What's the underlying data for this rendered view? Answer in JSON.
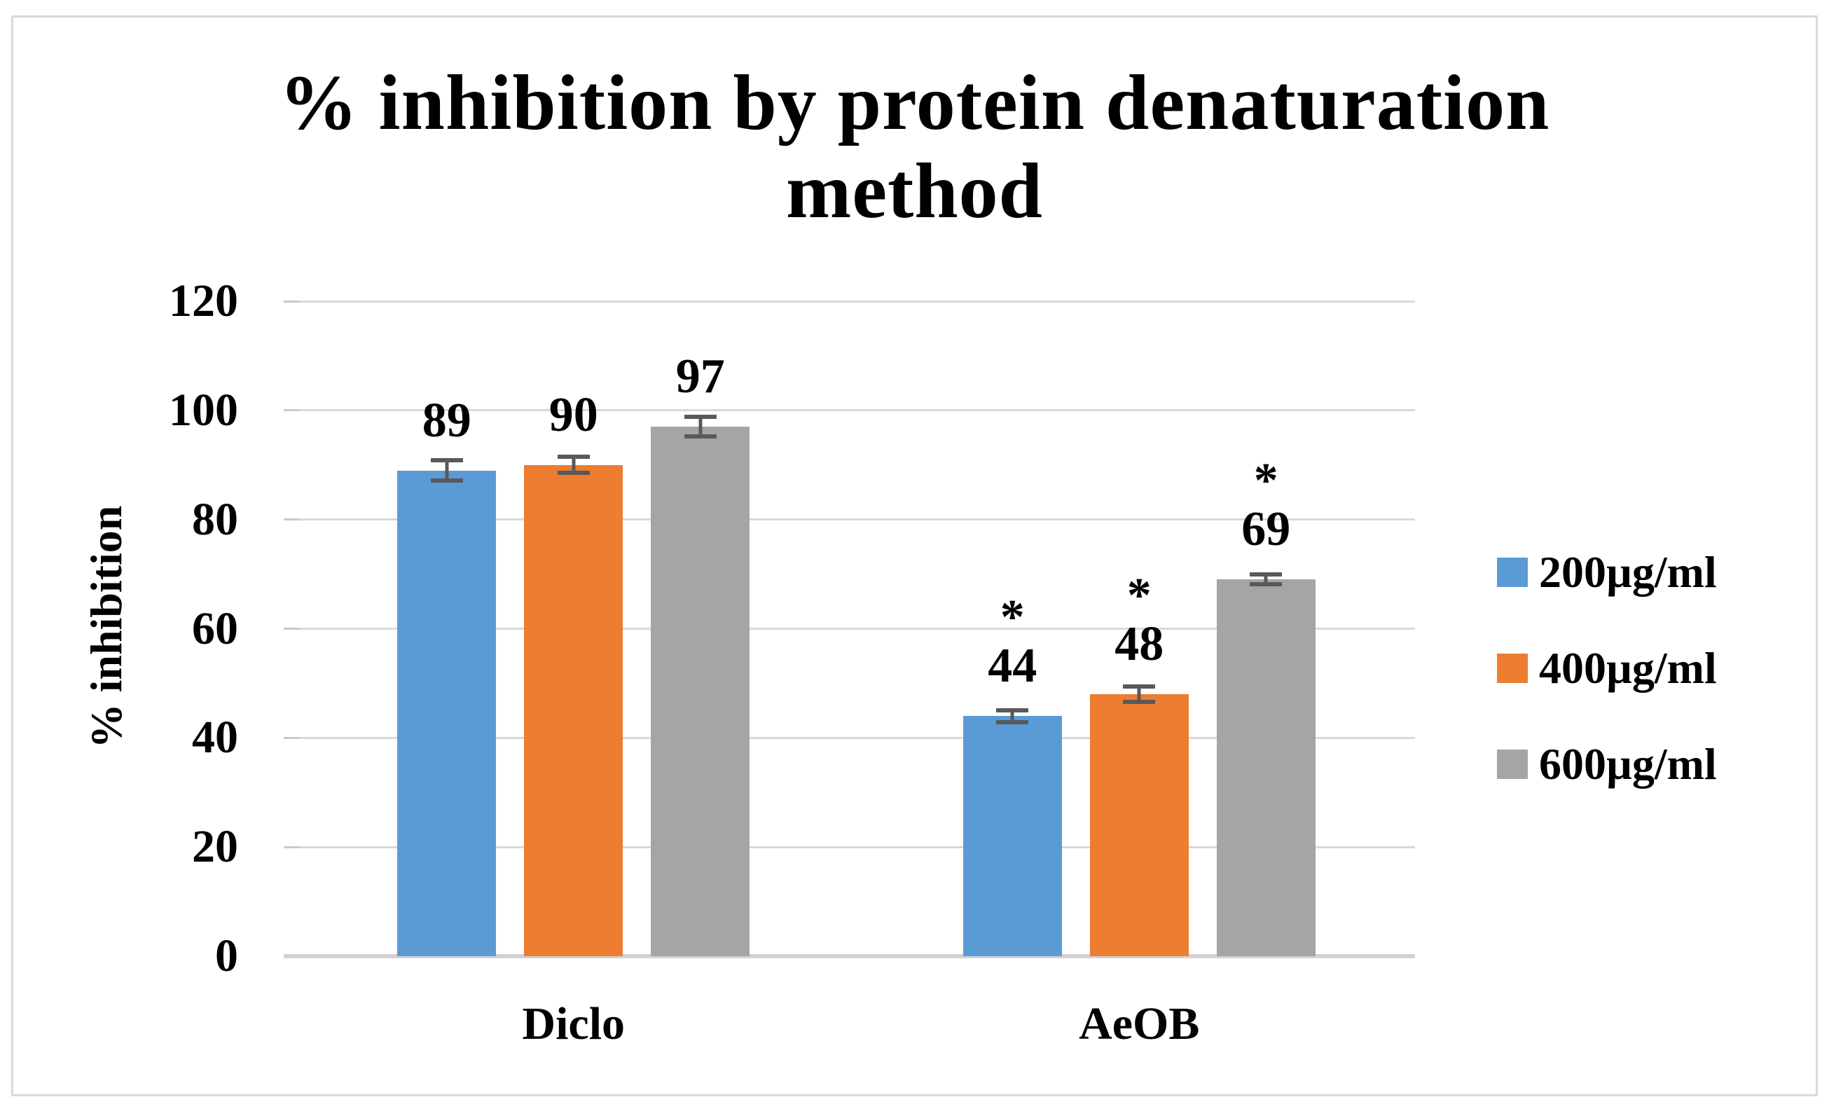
{
  "window": {
    "background": "#ffffff",
    "frame_border_color": "#d9d9d9"
  },
  "chart_data": {
    "type": "bar",
    "title": "% inhibition by protein denaturation method",
    "title_lines": [
      "% inhibition by protein denaturation",
      "method"
    ],
    "ylabel": "% inhibition",
    "xlabel": "",
    "categories": [
      "Diclo",
      "AeOB"
    ],
    "series": [
      {
        "name": "200µg/ml",
        "color": "#5B9BD5",
        "values": [
          89,
          44
        ],
        "errors": [
          1.9,
          1.1
        ],
        "annotations": [
          "",
          "*"
        ]
      },
      {
        "name": "400µg/ml",
        "color": "#ED7D31",
        "values": [
          90,
          48
        ],
        "errors": [
          1.5,
          1.4
        ],
        "annotations": [
          "",
          "*"
        ]
      },
      {
        "name": "600µg/ml",
        "color": "#A5A5A5",
        "values": [
          97,
          69
        ],
        "errors": [
          1.8,
          0.9
        ],
        "annotations": [
          "",
          "*"
        ]
      }
    ],
    "data_labels": [
      [
        "89",
        "90",
        "97"
      ],
      [
        "44",
        "48",
        "69"
      ]
    ],
    "ylim": [
      0,
      120
    ],
    "yticks": [
      120,
      100,
      80,
      60,
      40,
      20,
      0
    ],
    "grid": true,
    "gridline_color": "#d9d9d9",
    "axis_line_color": "#d2d2d2",
    "error_bar_color": "#595959",
    "text_color": "#000000",
    "legend_position": "right"
  }
}
